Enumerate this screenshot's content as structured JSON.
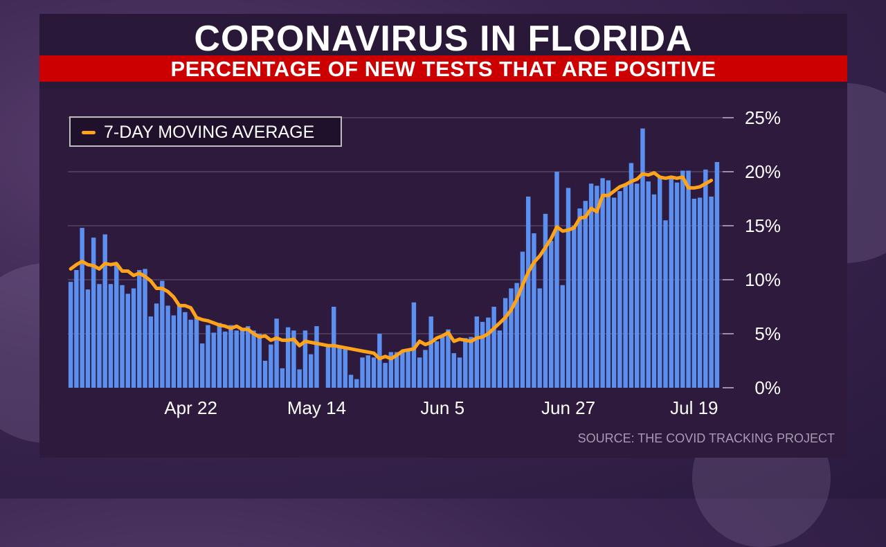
{
  "title": "CORONAVIRUS IN FLORIDA",
  "subtitle": "PERCENTAGE OF NEW TESTS THAT ARE POSITIVE",
  "legend": {
    "label": "7-DAY MOVING AVERAGE"
  },
  "source": "SOURCE: THE COVID TRACKING PROJECT",
  "colors": {
    "bars": "#5b8ff0",
    "average": "#ffa31a",
    "subtitle_bar": "#cc0000"
  },
  "chart_data": {
    "type": "bar",
    "title": "CORONAVIRUS IN FLORIDA",
    "subtitle": "PERCENTAGE OF NEW TESTS THAT ARE POSITIVE",
    "x_tick_labels": [
      "Apr 22",
      "May 14",
      "Jun 5",
      "Jun 27",
      "Jul 19"
    ],
    "y_tick_labels": [
      "0%",
      "5%",
      "10%",
      "15%",
      "20%",
      "25%"
    ],
    "ylim": [
      0,
      25
    ],
    "grid": true,
    "legend_position": "top-left",
    "series": [
      {
        "type": "bar",
        "values": [
          9.8,
          10.9,
          14.8,
          9.1,
          13.9,
          9.6,
          14.2,
          9.6,
          11.5,
          9.5,
          8.7,
          9.2,
          10.9,
          11.0,
          6.6,
          7.8,
          9.9,
          7.6,
          6.7,
          7.6,
          7.0,
          6.3,
          6.5,
          4.1,
          5.8,
          5.1,
          6.0,
          5.2,
          5.8,
          5.3,
          5.4,
          5.7,
          5.3,
          5.0,
          2.5,
          4.0,
          6.4,
          1.8,
          5.6,
          5.3,
          1.7,
          5.3,
          3.1,
          5.7,
          0.0,
          4.0,
          7.5,
          3.9,
          3.7,
          1.2,
          0.8,
          2.8,
          3.0,
          2.8,
          5.0,
          2.3,
          3.3,
          3.3,
          3.3,
          3.5,
          7.9,
          2.8,
          3.5,
          6.6,
          4.3,
          4.7,
          5.4,
          3.2,
          2.8,
          4.6,
          4.7,
          6.6,
          6.1,
          6.5,
          7.5,
          5.3,
          8.3,
          9.2,
          9.7,
          12.6,
          17.7,
          14.3,
          9.2,
          16.1,
          13.6,
          20.0,
          9.5,
          18.5,
          15.0,
          16.6,
          17.3,
          18.9,
          18.7,
          19.4,
          19.2,
          17.6,
          18.2,
          18.8,
          20.8,
          18.9,
          24.0,
          19.1,
          17.9,
          19.5,
          15.5,
          19.6,
          19.0,
          20.1,
          20.1,
          17.5,
          17.6,
          20.2,
          17.7,
          20.9
        ]
      },
      {
        "type": "line",
        "name": "7-DAY MOVING AVERAGE",
        "values": [
          11.0,
          11.4,
          11.7,
          11.4,
          11.3,
          11.0,
          11.5,
          11.4,
          11.5,
          10.8,
          10.8,
          10.4,
          10.6,
          10.3,
          9.9,
          9.2,
          9.2,
          8.9,
          8.4,
          7.6,
          7.6,
          7.4,
          6.5,
          6.3,
          6.2,
          6.0,
          5.8,
          5.7,
          5.5,
          5.7,
          5.4,
          5.4,
          5.0,
          4.7,
          4.8,
          4.4,
          4.6,
          4.4,
          4.4,
          4.5,
          3.9,
          4.3,
          4.2,
          4.1,
          4.0,
          3.9,
          3.9,
          3.8,
          3.7,
          3.6,
          3.5,
          3.4,
          3.3,
          3.2,
          2.7,
          2.9,
          2.7,
          3.0,
          3.4,
          3.5,
          3.6,
          4.3,
          4.0,
          4.2,
          4.6,
          4.8,
          5.1,
          4.3,
          4.5,
          4.4,
          4.3,
          4.6,
          4.7,
          5.0,
          5.5,
          6.0,
          6.5,
          7.2,
          8.2,
          9.5,
          10.7,
          11.6,
          12.2,
          13.0,
          13.8,
          14.9,
          14.5,
          14.6,
          14.8,
          15.7,
          15.8,
          16.6,
          16.3,
          17.8,
          17.8,
          18.2,
          18.6,
          18.8,
          19.1,
          19.3,
          19.8,
          19.7,
          19.9,
          19.5,
          19.4,
          19.5,
          19.4,
          19.5,
          18.5,
          18.5,
          18.6,
          18.9,
          19.2
        ]
      }
    ]
  }
}
